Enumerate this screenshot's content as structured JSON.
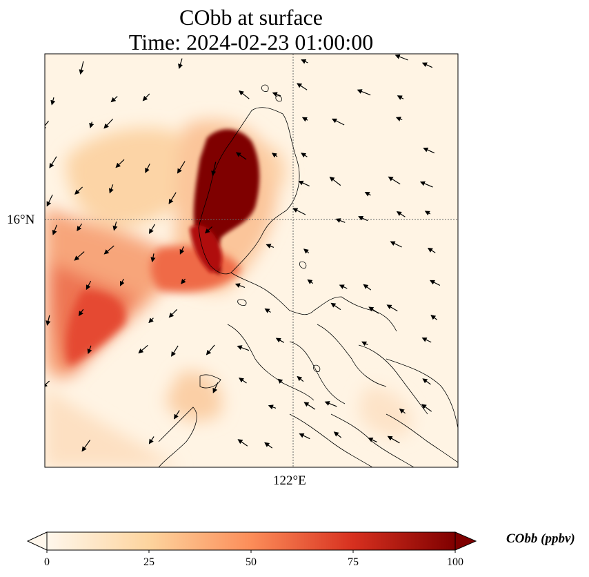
{
  "title": {
    "line1": "CObb at surface",
    "line2": "Time: 2024-02-23 01:00:00"
  },
  "axes": {
    "lat_gridline_label": "16°N",
    "lon_gridline_label": "122°E",
    "gridline_style": "dotted"
  },
  "colorbar": {
    "label": "CObb (ppbv)",
    "ticks": [
      "0",
      "25",
      "50",
      "75",
      "100"
    ],
    "min": 0,
    "max": 100,
    "extend": "both",
    "colormap": "OrRd",
    "colors": [
      "#fff7ec",
      "#fdd49e",
      "#fc8d59",
      "#d7301f",
      "#7f0000"
    ]
  },
  "map": {
    "background_color": "#fff4e4",
    "coastline_color": "#000000",
    "plume_max_color": "#7f0000",
    "wind_vector_color": "#000000"
  }
}
